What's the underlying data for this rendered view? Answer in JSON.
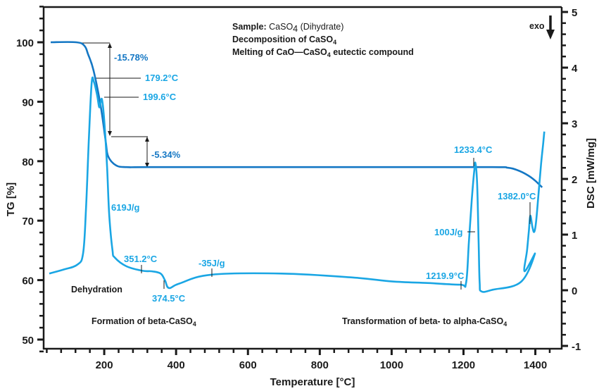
{
  "chart_data": {
    "type": "line",
    "xlabel": "Temperature [°C]",
    "ylabel_left": "TG [%]",
    "ylabel_right": "DSC [mW/mg]",
    "xlim": [
      0,
      1480
    ],
    "ylim_left": [
      48,
      106.2
    ],
    "ylim_right": [
      -1.06,
      5.22
    ],
    "x_ticks": [
      "200",
      "400",
      "600",
      "800",
      "1000",
      "1200",
      "1400"
    ],
    "x_tick_values": [
      200,
      400,
      600,
      800,
      1000,
      1200,
      1400
    ],
    "y_left_ticks": [
      "100",
      "90",
      "80",
      "70",
      "60",
      "50"
    ],
    "y_left_tick_values": [
      100,
      90,
      80,
      70,
      60,
      50
    ],
    "y_right_ticks": [
      "5",
      "4",
      "3",
      "2",
      "1",
      "0",
      "-1"
    ],
    "y_right_tick_values": [
      5,
      4,
      3,
      2,
      1,
      0,
      -1
    ],
    "grid": false,
    "series": [
      {
        "name": "TG",
        "axis": "left",
        "color": "#1477c4",
        "x": [
          51,
          122,
          145,
          155,
          170,
          190,
          204,
          211,
          233,
          262,
          323,
          600,
          1000,
          1281,
          1323,
          1350,
          1380,
          1400,
          1419
        ],
        "y": [
          100.0,
          100.0,
          99.4,
          98.0,
          95.3,
          89.3,
          83.4,
          80.8,
          79.3,
          79.0,
          79.0,
          79.0,
          79.0,
          79.0,
          78.9,
          78.5,
          77.6,
          76.7,
          75.6
        ]
      },
      {
        "name": "DSC",
        "axis": "right",
        "color": "#1aa6e4",
        "x": [
          47,
          86,
          125,
          141,
          149,
          157,
          165,
          171,
          180,
          186,
          190,
          194,
          200,
          208,
          214,
          223,
          229,
          262,
          307,
          333,
          357,
          369,
          380,
          409,
          498,
          694,
          890,
          1000,
          1100,
          1191,
          1207,
          1215,
          1223,
          1230,
          1233.4,
          1238,
          1242,
          1245,
          1250,
          1282,
          1360,
          1399,
          1370,
          1377,
          1382,
          1386,
          1392,
          1397,
          1402,
          1409,
          1416,
          1422,
          1425
        ],
        "y": [
          0.3,
          0.37,
          0.46,
          0.66,
          1.42,
          2.68,
          3.72,
          3.75,
          3.51,
          3.29,
          3.38,
          3.42,
          3.05,
          2.2,
          1.35,
          0.72,
          0.59,
          0.43,
          0.35,
          0.34,
          0.3,
          0.18,
          0.04,
          0.12,
          0.28,
          0.3,
          0.23,
          0.16,
          0.13,
          0.1,
          0.13,
          0.86,
          1.62,
          2.15,
          2.28,
          1.9,
          0.9,
          0.15,
          -0.02,
          0.01,
          0.15,
          0.66,
          0.34,
          0.72,
          1.07,
          1.34,
          1.13,
          1.05,
          1.23,
          1.75,
          2.27,
          2.65,
          2.85
        ]
      }
    ],
    "header": {
      "sample_label": "Sample:",
      "sample_value_pre": "CaSO",
      "sample_value_sub": "4",
      "sample_value_post": " (Dihydrate)",
      "line2_pre": "Decomposition of CaSO",
      "line2_sub": "4",
      "line3_pre": "Melting of CaO—CaSO",
      "line3_sub": "4",
      "line3_post": " eutectic compound"
    },
    "exo_label": "exo",
    "annotations": {
      "tg_step1": "-15.78%",
      "tg_step2": "-5.34%",
      "peak1": "179.2°C",
      "peak2": "199.6°C",
      "enthalpy1": "619J/g",
      "onset2": "351.2°C",
      "peak3": "374.5°C",
      "enthalpy2": "-35J/g",
      "onset3": "1219.9°C",
      "peak4": "1233.4°C",
      "enthalpy3": "100J/g",
      "peak5": "1382.0°C",
      "dehydration": "Dehydration",
      "formation_pre": "Formation of beta-CaSO",
      "formation_sub": "4",
      "transformation_pre": "Transformation of beta- to alpha-CaSO",
      "transformation_sub": "4"
    }
  }
}
